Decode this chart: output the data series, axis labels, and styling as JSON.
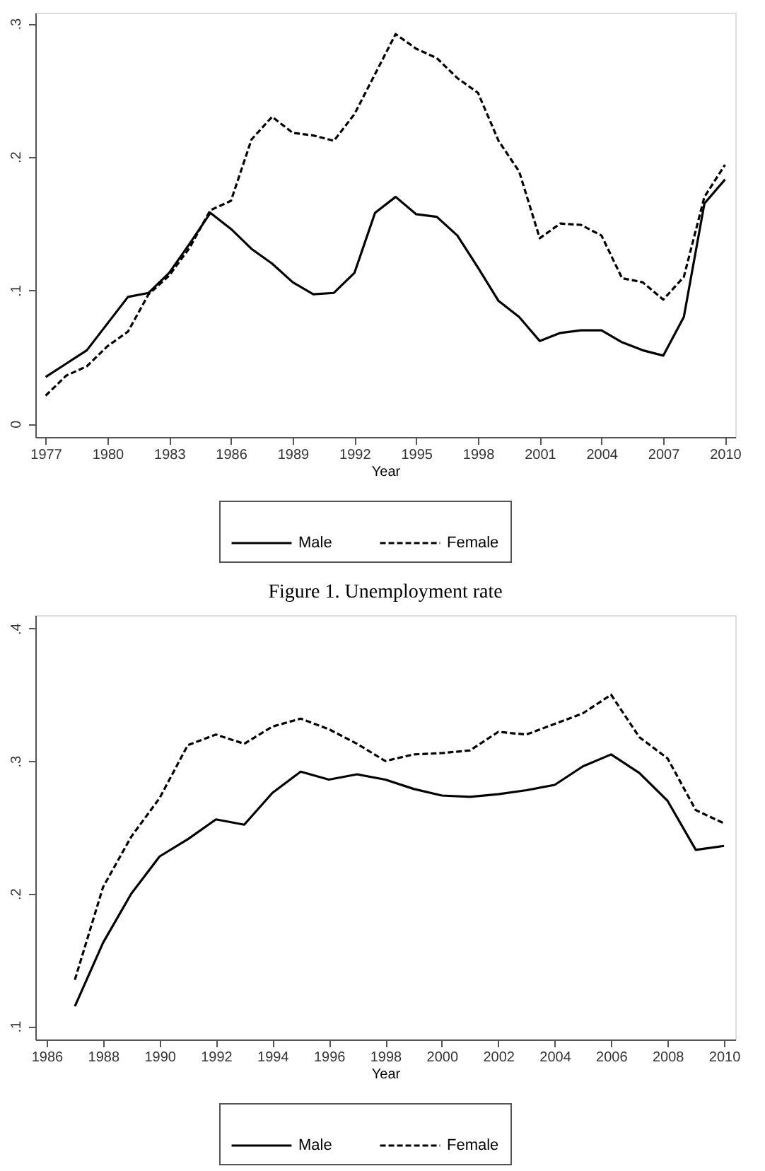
{
  "chart_data": [
    {
      "type": "line",
      "title": "Figure 1. Unemployment rate",
      "xlabel": "Year",
      "legend": "bottom",
      "grid": false,
      "marker": "none",
      "x": [
        1977,
        1978,
        1979,
        1980,
        1981,
        1982,
        1983,
        1984,
        1985,
        1986,
        1987,
        1988,
        1989,
        1990,
        1991,
        1992,
        1993,
        1994,
        1995,
        1996,
        1997,
        1998,
        1999,
        2000,
        2001,
        2002,
        2003,
        2004,
        2005,
        2006,
        2007,
        2008,
        2009,
        2010
      ],
      "xlim": [
        1976.5,
        2010.5
      ],
      "xticks": [
        1977,
        1980,
        1983,
        1986,
        1989,
        1992,
        1995,
        1998,
        2001,
        2004,
        2007,
        2010
      ],
      "ylim": [
        -0.01,
        0.308
      ],
      "yticks": [
        0,
        {
          "value": 0.1,
          "label": ".1"
        },
        {
          "value": 0.2,
          "label": ".2"
        },
        {
          "value": 0.3,
          "label": ".3"
        }
      ],
      "series": [
        {
          "name": "Male",
          "color": "#000000",
          "line_style": "solid",
          "values": [
            0.035,
            0.045,
            0.055,
            0.075,
            0.095,
            0.098,
            0.113,
            0.135,
            0.158,
            0.146,
            0.131,
            0.12,
            0.106,
            0.097,
            0.098,
            0.113,
            0.158,
            0.17,
            0.157,
            0.155,
            0.141,
            0.117,
            0.092,
            0.08,
            0.062,
            0.068,
            0.07,
            0.07,
            0.061,
            0.055,
            0.051,
            0.08,
            0.165,
            0.183
          ]
        },
        {
          "name": "Female",
          "color": "#000000",
          "line_style": "dashed",
          "values": [
            0.021,
            0.036,
            0.043,
            0.058,
            0.069,
            0.097,
            0.111,
            0.132,
            0.16,
            0.167,
            0.213,
            0.23,
            0.218,
            0.216,
            0.212,
            0.232,
            0.262,
            0.292,
            0.281,
            0.274,
            0.259,
            0.248,
            0.212,
            0.189,
            0.139,
            0.15,
            0.149,
            0.141,
            0.109,
            0.106,
            0.093,
            0.11,
            0.17,
            0.194
          ]
        }
      ]
    },
    {
      "type": "line",
      "xlabel": "Year",
      "legend": "bottom",
      "grid": false,
      "marker": "none",
      "x": [
        1987,
        1988,
        1989,
        1990,
        1991,
        1992,
        1993,
        1994,
        1995,
        1996,
        1997,
        1998,
        1999,
        2000,
        2001,
        2002,
        2003,
        2004,
        2005,
        2006,
        2007,
        2008,
        2009,
        2010
      ],
      "xlim": [
        1985.6,
        2010.4
      ],
      "xticks": [
        1986,
        1988,
        1990,
        1992,
        1994,
        1996,
        1998,
        2000,
        2002,
        2004,
        2006,
        2008,
        2010
      ],
      "ylim": [
        0.09,
        0.41
      ],
      "yticks": [
        {
          "value": 0.1,
          "label": ".1"
        },
        {
          "value": 0.2,
          "label": ".2"
        },
        {
          "value": 0.3,
          "label": ".3"
        },
        {
          "value": 0.4,
          "label": ".4"
        }
      ],
      "series": [
        {
          "name": "Male",
          "color": "#000000",
          "line_style": "solid",
          "values": [
            0.115,
            0.163,
            0.2,
            0.228,
            0.241,
            0.256,
            0.252,
            0.276,
            0.292,
            0.286,
            0.29,
            0.286,
            0.279,
            0.274,
            0.273,
            0.275,
            0.278,
            0.282,
            0.296,
            0.305,
            0.291,
            0.27,
            0.233,
            0.236
          ]
        },
        {
          "name": "Female",
          "color": "#000000",
          "line_style": "dashed",
          "values": [
            0.135,
            0.205,
            0.243,
            0.272,
            0.312,
            0.32,
            0.313,
            0.326,
            0.332,
            0.324,
            0.313,
            0.3,
            0.305,
            0.306,
            0.308,
            0.322,
            0.32,
            0.328,
            0.336,
            0.35,
            0.318,
            0.302,
            0.263,
            0.253
          ]
        }
      ]
    }
  ]
}
